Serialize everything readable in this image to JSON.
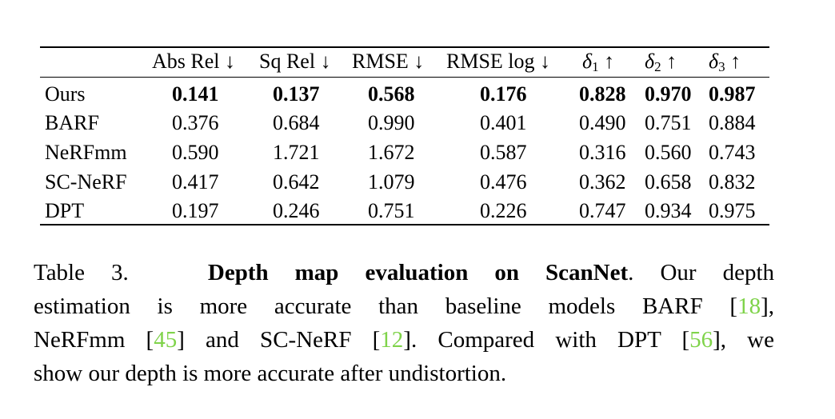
{
  "table": {
    "headers": [
      "",
      "Abs Rel ↓",
      "Sq Rel ↓",
      "RMSE ↓",
      "RMSE log ↓",
      "δ1 ↑",
      "δ2 ↑",
      "δ3 ↑"
    ],
    "rows": [
      {
        "method": "Ours",
        "values": [
          "0.141",
          "0.137",
          "0.568",
          "0.176",
          "0.828",
          "0.970",
          "0.987"
        ],
        "bold": true
      },
      {
        "method": "BARF",
        "values": [
          "0.376",
          "0.684",
          "0.990",
          "0.401",
          "0.490",
          "0.751",
          "0.884"
        ],
        "bold": false
      },
      {
        "method": "NeRFmm",
        "values": [
          "0.590",
          "1.721",
          "1.672",
          "0.587",
          "0.316",
          "0.560",
          "0.743"
        ],
        "bold": false
      },
      {
        "method": "SC-NeRF",
        "values": [
          "0.417",
          "0.642",
          "1.079",
          "0.476",
          "0.362",
          "0.658",
          "0.832"
        ],
        "bold": false
      },
      {
        "method": "DPT",
        "values": [
          "0.197",
          "0.246",
          "0.751",
          "0.226",
          "0.747",
          "0.934",
          "0.975"
        ],
        "bold": false
      }
    ]
  },
  "caption": {
    "label": "Table 3.",
    "title": "Depth map evaluation on ScanNet",
    "line1_tail": ". Our depth",
    "line2_pre": "estimation is more accurate than baseline models BARF [",
    "ref_barf": "18",
    "line2_post": "],",
    "line3_a": "NeRFmm [",
    "ref_nerfmm": "45",
    "line3_b": "] and SC-NeRF [",
    "ref_scnerf": "12",
    "line3_c": "]. Compared with DPT [",
    "ref_dpt": "56",
    "line3_d": "], we",
    "line4": "show our depth is more accurate after undistortion.",
    "ref_color": "#7fd34a"
  }
}
